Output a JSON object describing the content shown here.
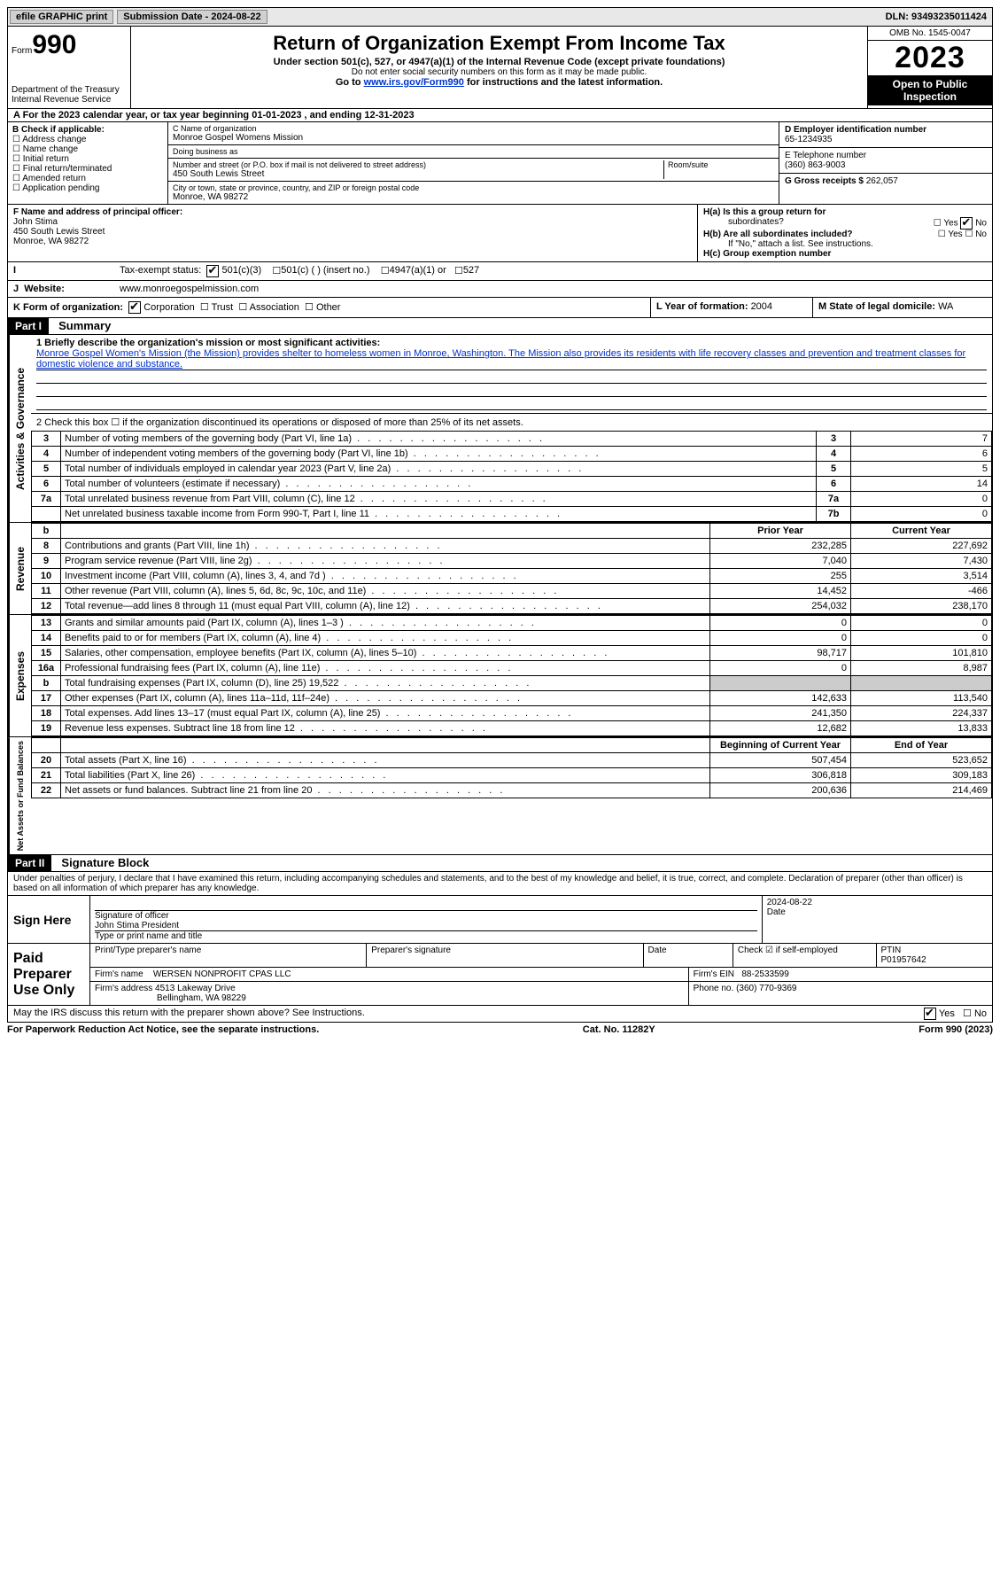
{
  "topbar": {
    "efile": "efile GRAPHIC print",
    "submission_label": "Submission Date - ",
    "submission_date": "2024-08-22",
    "dln_label": "DLN: ",
    "dln": "93493235011424"
  },
  "header": {
    "form_word": "Form",
    "form_num": "990",
    "title": "Return of Organization Exempt From Income Tax",
    "sub1": "Under section 501(c), 527, or 4947(a)(1) of the Internal Revenue Code (except private foundations)",
    "sub2": "Do not enter social security numbers on this form as it may be made public.",
    "sub3_pre": "Go to ",
    "sub3_link": "www.irs.gov/Form990",
    "sub3_post": " for instructions and the latest information.",
    "dept": "Department of the Treasury\nInternal Revenue Service",
    "omb": "OMB No. 1545-0047",
    "year": "2023",
    "inspect": "Open to Public Inspection"
  },
  "lineA": {
    "text_pre": "A For the 2023 calendar year, or tax year beginning ",
    "begin": "01-01-2023",
    "mid": " , and ending ",
    "end": "12-31-2023"
  },
  "boxB": {
    "title": "B Check if applicable:",
    "opts": [
      "Address change",
      "Name change",
      "Initial return",
      "Final return/terminated",
      "Amended return",
      "Application pending"
    ]
  },
  "boxC": {
    "name_lbl": "C Name of organization",
    "name": "Monroe Gospel Womens Mission",
    "dba_lbl": "Doing business as",
    "dba": "",
    "street_lbl": "Number and street (or P.O. box if mail is not delivered to street address)",
    "street": "450 South Lewis Street",
    "room_lbl": "Room/suite",
    "city_lbl": "City or town, state or province, country, and ZIP or foreign postal code",
    "city": "Monroe, WA  98272"
  },
  "boxD": {
    "ein_lbl": "D Employer identification number",
    "ein": "65-1234935",
    "phone_lbl": "E Telephone number",
    "phone": "(360) 863-9003",
    "gross_lbl": "G Gross receipts $ ",
    "gross": "262,057"
  },
  "boxF": {
    "lbl": "F Name and address of principal officer:",
    "name": "John Stima",
    "addr1": "450 South Lewis Street",
    "addr2": "Monroe, WA  98272"
  },
  "boxH": {
    "a_lbl": "H(a)  Is this a group return for",
    "a_lbl2": "subordinates?",
    "a_yes": "Yes",
    "a_no": "No",
    "b_lbl": "H(b)  Are all subordinates included?",
    "b_yes": "Yes",
    "b_no": "No",
    "b_note": "If \"No,\" attach a list. See instructions.",
    "c_lbl": "H(c)  Group exemption number"
  },
  "lineI": {
    "lbl": "Tax-exempt status:",
    "opt1": "501(c)(3)",
    "opt2": "501(c) (  ) (insert no.)",
    "opt3": "4947(a)(1) or",
    "opt4": "527"
  },
  "lineJ": {
    "lbl": "Website:",
    "val": "www.monroegospelmission.com"
  },
  "lineK": {
    "lbl": "K Form of organization:",
    "opts": [
      "Corporation",
      "Trust",
      "Association",
      "Other"
    ]
  },
  "lineL": {
    "lbl": "L Year of formation: ",
    "val": "2004"
  },
  "lineM": {
    "lbl": "M State of legal domicile: ",
    "val": "WA"
  },
  "part1": {
    "hdr": "Part I",
    "title": "Summary",
    "q1_lbl": "1  Briefly describe the organization's mission or most significant activities:",
    "q1_text": "Monroe Gospel Women's Mission (the Mission) provides shelter to homeless women in Monroe, Washington. The Mission also provides its residents with life recovery classes and prevention and treatment classes for domestic violence and substance.",
    "q2": "2   Check this box  ☐  if the organization discontinued its operations or disposed of more than 25% of its net assets.",
    "rows_gov": [
      {
        "n": "3",
        "desc": "Number of voting members of the governing body (Part VI, line 1a)",
        "box": "3",
        "val": "7"
      },
      {
        "n": "4",
        "desc": "Number of independent voting members of the governing body (Part VI, line 1b)",
        "box": "4",
        "val": "6"
      },
      {
        "n": "5",
        "desc": "Total number of individuals employed in calendar year 2023 (Part V, line 2a)",
        "box": "5",
        "val": "5"
      },
      {
        "n": "6",
        "desc": "Total number of volunteers (estimate if necessary)",
        "box": "6",
        "val": "14"
      },
      {
        "n": "7a",
        "desc": "Total unrelated business revenue from Part VIII, column (C), line 12",
        "box": "7a",
        "val": "0"
      },
      {
        "n": "",
        "desc": "Net unrelated business taxable income from Form 990-T, Part I, line 11",
        "box": "7b",
        "val": "0"
      }
    ],
    "col_prior": "Prior Year",
    "col_current": "Current Year",
    "rows_rev": [
      {
        "n": "8",
        "desc": "Contributions and grants (Part VIII, line 1h)",
        "p": "232,285",
        "c": "227,692"
      },
      {
        "n": "9",
        "desc": "Program service revenue (Part VIII, line 2g)",
        "p": "7,040",
        "c": "7,430"
      },
      {
        "n": "10",
        "desc": "Investment income (Part VIII, column (A), lines 3, 4, and 7d )",
        "p": "255",
        "c": "3,514"
      },
      {
        "n": "11",
        "desc": "Other revenue (Part VIII, column (A), lines 5, 6d, 8c, 9c, 10c, and 11e)",
        "p": "14,452",
        "c": "-466"
      },
      {
        "n": "12",
        "desc": "Total revenue—add lines 8 through 11 (must equal Part VIII, column (A), line 12)",
        "p": "254,032",
        "c": "238,170"
      }
    ],
    "rows_exp": [
      {
        "n": "13",
        "desc": "Grants and similar amounts paid (Part IX, column (A), lines 1–3 )",
        "p": "0",
        "c": "0"
      },
      {
        "n": "14",
        "desc": "Benefits paid to or for members (Part IX, column (A), line 4)",
        "p": "0",
        "c": "0"
      },
      {
        "n": "15",
        "desc": "Salaries, other compensation, employee benefits (Part IX, column (A), lines 5–10)",
        "p": "98,717",
        "c": "101,810"
      },
      {
        "n": "16a",
        "desc": "Professional fundraising fees (Part IX, column (A), line 11e)",
        "p": "0",
        "c": "8,987"
      },
      {
        "n": "b",
        "desc": "Total fundraising expenses (Part IX, column (D), line 25) 19,522",
        "p": "grey",
        "c": "grey"
      },
      {
        "n": "17",
        "desc": "Other expenses (Part IX, column (A), lines 11a–11d, 11f–24e)",
        "p": "142,633",
        "c": "113,540"
      },
      {
        "n": "18",
        "desc": "Total expenses. Add lines 13–17 (must equal Part IX, column (A), line 25)",
        "p": "241,350",
        "c": "224,337"
      },
      {
        "n": "19",
        "desc": "Revenue less expenses. Subtract line 18 from line 12",
        "p": "12,682",
        "c": "13,833"
      }
    ],
    "col_begin": "Beginning of Current Year",
    "col_end": "End of Year",
    "rows_net": [
      {
        "n": "20",
        "desc": "Total assets (Part X, line 16)",
        "p": "507,454",
        "c": "523,652"
      },
      {
        "n": "21",
        "desc": "Total liabilities (Part X, line 26)",
        "p": "306,818",
        "c": "309,183"
      },
      {
        "n": "22",
        "desc": "Net assets or fund balances. Subtract line 21 from line 20",
        "p": "200,636",
        "c": "214,469"
      }
    ],
    "vlabels": {
      "gov": "Activities & Governance",
      "rev": "Revenue",
      "exp": "Expenses",
      "net": "Net Assets or Fund Balances"
    }
  },
  "part2": {
    "hdr": "Part II",
    "title": "Signature Block",
    "decl": "Under penalties of perjury, I declare that I have examined this return, including accompanying schedules and statements, and to the best of my knowledge and belief, it is true, correct, and complete. Declaration of preparer (other than officer) is based on all information of which preparer has any knowledge.",
    "sign_here": "Sign Here",
    "sig_officer": "Signature of officer",
    "sig_name": "John Stima  President",
    "sig_title_lbl": "Type or print name and title",
    "sig_date_lbl": "Date",
    "sig_date": "2024-08-22",
    "paid": "Paid Preparer Use Only",
    "prep_name_lbl": "Print/Type preparer's name",
    "prep_sig_lbl": "Preparer's signature",
    "date_lbl": "Date",
    "check_lbl": "Check ☑ if self-employed",
    "ptin_lbl": "PTIN",
    "ptin": "P01957642",
    "firm_name_lbl": "Firm's name",
    "firm_name": "WERSEN NONPROFIT CPAS LLC",
    "firm_ein_lbl": "Firm's EIN",
    "firm_ein": "88-2533599",
    "firm_addr_lbl": "Firm's address",
    "firm_addr1": "4513 Lakeway Drive",
    "firm_addr2": "Bellingham, WA  98229",
    "firm_phone_lbl": "Phone no.",
    "firm_phone": "(360) 770-9369",
    "discuss": "May the IRS discuss this return with the preparer shown above? See Instructions.",
    "discuss_yes": "Yes",
    "discuss_no": "No"
  },
  "footer": {
    "left": "For Paperwork Reduction Act Notice, see the separate instructions.",
    "mid": "Cat. No. 11282Y",
    "right": "Form 990 (2023)"
  }
}
